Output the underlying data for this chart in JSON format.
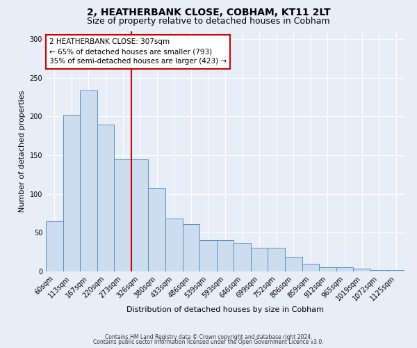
{
  "title": "2, HEATHERBANK CLOSE, COBHAM, KT11 2LT",
  "subtitle": "Size of property relative to detached houses in Cobham",
  "xlabel": "Distribution of detached houses by size in Cobham",
  "ylabel": "Number of detached properties",
  "categories": [
    "60sqm",
    "113sqm",
    "167sqm",
    "220sqm",
    "273sqm",
    "326sqm",
    "380sqm",
    "433sqm",
    "486sqm",
    "539sqm",
    "593sqm",
    "646sqm",
    "699sqm",
    "752sqm",
    "806sqm",
    "859sqm",
    "912sqm",
    "965sqm",
    "1019sqm",
    "1072sqm",
    "1125sqm"
  ],
  "values": [
    65,
    202,
    234,
    190,
    145,
    145,
    108,
    68,
    61,
    40,
    40,
    37,
    31,
    31,
    19,
    10,
    5,
    5,
    4,
    2,
    2
  ],
  "bar_color": "#ccddf0",
  "bar_edge_color": "#5a8fc0",
  "vline_color": "#cc0000",
  "ylim": [
    0,
    310
  ],
  "yticks": [
    0,
    50,
    100,
    150,
    200,
    250,
    300
  ],
  "annotation_text": "2 HEATHERBANK CLOSE: 307sqm\n← 65% of detached houses are smaller (793)\n35% of semi-detached houses are larger (423) →",
  "annotation_box_color": "#ffffff",
  "annotation_box_edge": "#cc0000",
  "footer1": "Contains HM Land Registry data © Crown copyright and database right 2024.",
  "footer2": "Contains public sector information licensed under the Open Government Licence v3.0.",
  "background_color": "#e8eef8",
  "plot_background": "#e8eef8",
  "title_fontsize": 10,
  "subtitle_fontsize": 9,
  "ylabel_fontsize": 8,
  "xlabel_fontsize": 8,
  "tick_fontsize": 7,
  "footer_fontsize": 5.5,
  "annot_fontsize": 7.5
}
